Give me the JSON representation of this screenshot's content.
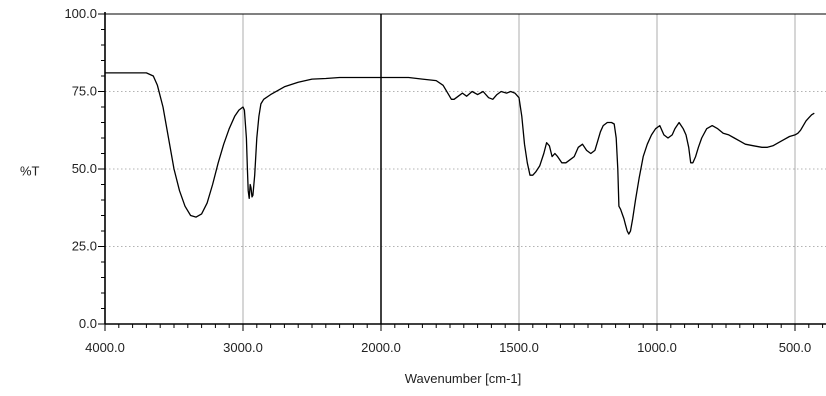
{
  "chart_data": {
    "type": "line",
    "xlabel": "Wavenumber [cm-1]",
    "ylabel": "%T",
    "xlim": [
      4000,
      0
    ],
    "ylim": [
      0,
      100
    ],
    "x_reversed": true,
    "x_tick_labels": [
      "4000.0",
      "3000.0",
      "2000.0",
      "1500.0",
      "1000.0",
      "500.0"
    ],
    "y_tick_labels": [
      "0.0",
      "25.0",
      "50.0",
      "75.0",
      "100.0"
    ],
    "grid": true,
    "series": [
      {
        "color": "#000000",
        "points": [
          [
            4000,
            81
          ],
          [
            3800,
            81
          ],
          [
            3700,
            81
          ],
          [
            3650,
            80
          ],
          [
            3620,
            77
          ],
          [
            3580,
            70
          ],
          [
            3540,
            60
          ],
          [
            3500,
            50
          ],
          [
            3460,
            43
          ],
          [
            3420,
            38
          ],
          [
            3380,
            35
          ],
          [
            3340,
            34.5
          ],
          [
            3300,
            35.5
          ],
          [
            3260,
            39
          ],
          [
            3220,
            45
          ],
          [
            3180,
            52
          ],
          [
            3140,
            58
          ],
          [
            3100,
            63
          ],
          [
            3060,
            67
          ],
          [
            3030,
            69
          ],
          [
            3000,
            70
          ],
          [
            2990,
            69
          ],
          [
            2975,
            60
          ],
          [
            2968,
            50
          ],
          [
            2962,
            43
          ],
          [
            2955,
            40.5
          ],
          [
            2948,
            45
          ],
          [
            2942,
            44
          ],
          [
            2935,
            41
          ],
          [
            2928,
            41.5
          ],
          [
            2915,
            48
          ],
          [
            2900,
            60
          ],
          [
            2885,
            67
          ],
          [
            2870,
            71
          ],
          [
            2850,
            72.5
          ],
          [
            2800,
            74
          ],
          [
            2700,
            76.5
          ],
          [
            2600,
            78
          ],
          [
            2500,
            79
          ],
          [
            2400,
            79.2
          ],
          [
            2300,
            79.5
          ],
          [
            2200,
            79.5
          ],
          [
            2100,
            79.5
          ],
          [
            2000,
            79.5
          ],
          [
            1900,
            79.5
          ],
          [
            1850,
            79
          ],
          [
            1800,
            78.5
          ],
          [
            1775,
            77
          ],
          [
            1755,
            74
          ],
          [
            1745,
            72.5
          ],
          [
            1735,
            72.5
          ],
          [
            1720,
            73.5
          ],
          [
            1705,
            74.5
          ],
          [
            1690,
            73.5
          ],
          [
            1670,
            75
          ],
          [
            1650,
            74
          ],
          [
            1630,
            75
          ],
          [
            1610,
            73
          ],
          [
            1595,
            72.5
          ],
          [
            1580,
            74
          ],
          [
            1565,
            75
          ],
          [
            1545,
            74.5
          ],
          [
            1530,
            75
          ],
          [
            1515,
            74.5
          ],
          [
            1500,
            73
          ],
          [
            1490,
            67
          ],
          [
            1480,
            58
          ],
          [
            1470,
            52
          ],
          [
            1460,
            48
          ],
          [
            1450,
            48
          ],
          [
            1440,
            49
          ],
          [
            1425,
            51
          ],
          [
            1410,
            55
          ],
          [
            1400,
            58.5
          ],
          [
            1390,
            57.5
          ],
          [
            1380,
            54
          ],
          [
            1370,
            55
          ],
          [
            1360,
            54
          ],
          [
            1345,
            52
          ],
          [
            1330,
            52
          ],
          [
            1315,
            53
          ],
          [
            1300,
            54
          ],
          [
            1285,
            57
          ],
          [
            1270,
            58
          ],
          [
            1255,
            56
          ],
          [
            1240,
            55
          ],
          [
            1225,
            56
          ],
          [
            1215,
            59
          ],
          [
            1205,
            62
          ],
          [
            1195,
            64
          ],
          [
            1180,
            65
          ],
          [
            1165,
            65
          ],
          [
            1155,
            64.5
          ],
          [
            1148,
            60
          ],
          [
            1142,
            50
          ],
          [
            1138,
            38
          ],
          [
            1132,
            37
          ],
          [
            1126,
            35.5
          ],
          [
            1120,
            34
          ],
          [
            1114,
            32
          ],
          [
            1108,
            30
          ],
          [
            1102,
            29
          ],
          [
            1096,
            30
          ],
          [
            1088,
            34
          ],
          [
            1078,
            40
          ],
          [
            1065,
            47
          ],
          [
            1050,
            54
          ],
          [
            1035,
            58
          ],
          [
            1020,
            61
          ],
          [
            1005,
            63
          ],
          [
            990,
            64
          ],
          [
            975,
            61
          ],
          [
            960,
            60
          ],
          [
            945,
            61
          ],
          [
            935,
            63
          ],
          [
            920,
            65
          ],
          [
            905,
            63
          ],
          [
            895,
            61
          ],
          [
            885,
            57
          ],
          [
            878,
            52
          ],
          [
            870,
            52
          ],
          [
            860,
            54
          ],
          [
            850,
            57
          ],
          [
            838,
            60
          ],
          [
            820,
            63
          ],
          [
            800,
            64
          ],
          [
            780,
            63
          ],
          [
            760,
            61.5
          ],
          [
            740,
            61
          ],
          [
            720,
            60
          ],
          [
            700,
            59
          ],
          [
            680,
            58
          ],
          [
            650,
            57.5
          ],
          [
            620,
            57
          ],
          [
            600,
            57
          ],
          [
            580,
            57.5
          ],
          [
            560,
            58.5
          ],
          [
            540,
            59.5
          ],
          [
            520,
            60.5
          ],
          [
            500,
            61
          ],
          [
            490,
            61.5
          ],
          [
            480,
            62.5
          ],
          [
            470,
            64
          ],
          [
            460,
            65.5
          ],
          [
            450,
            66.5
          ],
          [
            440,
            67.5
          ],
          [
            430,
            68
          ]
        ]
      }
    ]
  }
}
